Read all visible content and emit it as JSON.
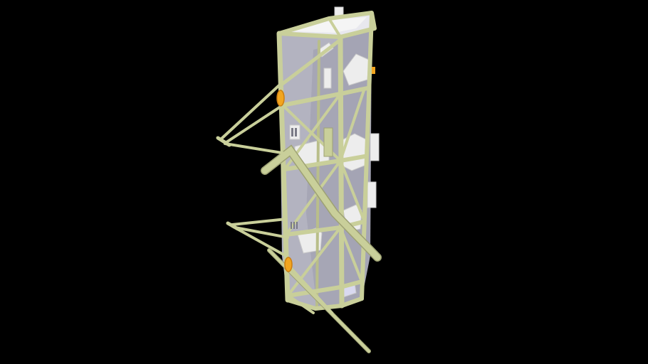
{
  "scene": {
    "background_color": "#000000",
    "subject": "truss-tower-model",
    "colors": {
      "truss": "#c9cf9a",
      "truss_shadow": "#9ea274",
      "panel": "#c8c8d0",
      "panel_dark": "#9a9aa8",
      "component": "#efefef",
      "component_shadow": "#c9c9c9",
      "accent_orange": "#f2a51f",
      "accent_orange_dark": "#cd7e0f"
    }
  }
}
